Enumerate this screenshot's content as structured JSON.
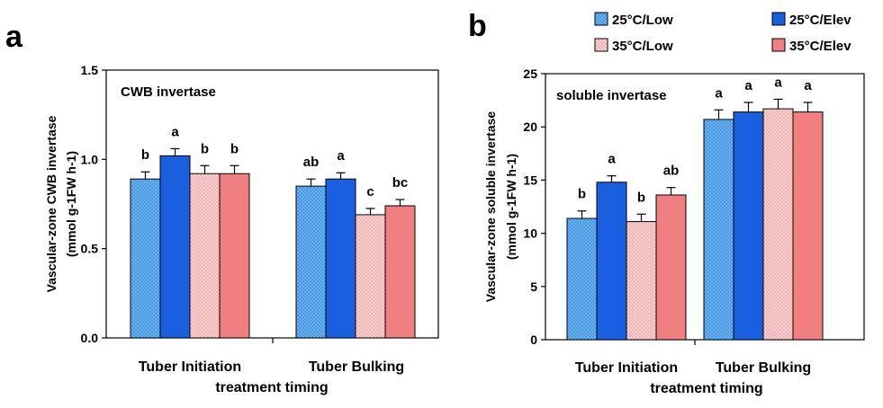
{
  "panels": {
    "a": "a",
    "b": "b"
  },
  "legend": {
    "entries": [
      {
        "label": "25°C/Low",
        "color": "#4fa0e8",
        "pattern": "dots"
      },
      {
        "label": "25°C/Elev",
        "color": "#1a5fe0",
        "pattern": "solid"
      },
      {
        "label": "35°C/Low",
        "color": "#f4a7a7",
        "pattern": "dots"
      },
      {
        "label": "35°C/Elev",
        "color": "#f07f82",
        "pattern": "solid"
      }
    ]
  },
  "chart_data": [
    {
      "type": "bar",
      "panel": "a",
      "annotation": "CWB invertase",
      "categories": [
        "Tuber Initiation",
        "Tuber Bulking"
      ],
      "xlabel": "treatment timing",
      "ylabel": "Vascular-zone CWB invertase",
      "ylabel2": "(mmol g-1FW h-1)",
      "ylim": [
        0,
        1.5
      ],
      "yticks": [
        "0.0",
        "0.5",
        "1.0",
        "1.5"
      ],
      "ytick_values": [
        0,
        0.5,
        1.0,
        1.5
      ],
      "series": [
        {
          "name": "25°C/Low",
          "values": [
            0.89,
            0.85
          ],
          "errors": [
            0.04,
            0.04
          ],
          "letters": [
            "b",
            "ab"
          ]
        },
        {
          "name": "25°C/Elev",
          "values": [
            1.02,
            0.89
          ],
          "errors": [
            0.04,
            0.035
          ],
          "letters": [
            "a",
            "a"
          ]
        },
        {
          "name": "35°C/Low",
          "values": [
            0.92,
            0.69
          ],
          "errors": [
            0.045,
            0.035
          ],
          "letters": [
            "b",
            "c"
          ]
        },
        {
          "name": "35°C/Elev",
          "values": [
            0.92,
            0.74
          ],
          "errors": [
            0.045,
            0.035
          ],
          "letters": [
            "b",
            "bc"
          ]
        }
      ]
    },
    {
      "type": "bar",
      "panel": "b",
      "annotation": "soluble invertase",
      "categories": [
        "Tuber Initiation",
        "Tuber Bulking"
      ],
      "xlabel": "treatment timing",
      "ylabel": "Vascular-zone soluble invertase",
      "ylabel2": "(mmol g-1FW h-1)",
      "ylim": [
        0,
        25
      ],
      "yticks": [
        "0",
        "5",
        "10",
        "15",
        "20",
        "25"
      ],
      "ytick_values": [
        0,
        5,
        10,
        15,
        20,
        25
      ],
      "series": [
        {
          "name": "25°C/Low",
          "values": [
            11.4,
            20.7
          ],
          "errors": [
            0.7,
            0.9
          ],
          "letters": [
            "b",
            "a"
          ]
        },
        {
          "name": "25°C/Elev",
          "values": [
            14.8,
            21.4
          ],
          "errors": [
            0.6,
            0.9
          ],
          "letters": [
            "a",
            "a"
          ]
        },
        {
          "name": "35°C/Low",
          "values": [
            11.1,
            21.7
          ],
          "errors": [
            0.7,
            0.9
          ],
          "letters": [
            "b",
            "a"
          ]
        },
        {
          "name": "35°C/Elev",
          "values": [
            13.6,
            21.4
          ],
          "errors": [
            0.7,
            0.9
          ],
          "letters": [
            "ab",
            "a"
          ]
        }
      ]
    }
  ]
}
